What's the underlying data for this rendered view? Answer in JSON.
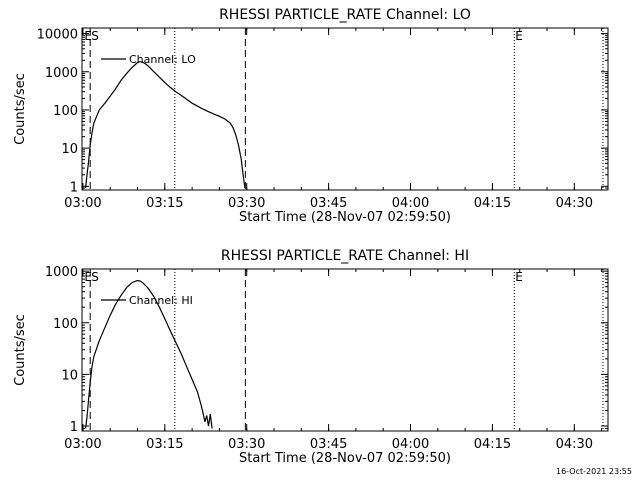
{
  "footer": {
    "timestamp": "16-Oct-2021 23:55"
  },
  "chart_data": [
    {
      "type": "line",
      "title": "RHESSI PARTICLE_RATE Channel: LO",
      "xlabel": "Start Time (28-Nov-07 02:59:50)",
      "ylabel": "Counts/sec",
      "scale_y": "log",
      "xlim": [
        "02:59:50",
        "04:36:10"
      ],
      "ylim": [
        0.8,
        14000
      ],
      "xticks": [
        "03:00",
        "03:15",
        "03:30",
        "03:45",
        "04:00",
        "04:15",
        "04:30"
      ],
      "yticks": [
        "1",
        "10",
        "100",
        "1000",
        "10000"
      ],
      "legend": {
        "label": "Channel: LO",
        "position": "top-left"
      },
      "markers": [
        {
          "text": "E",
          "time": "03:00:05"
        },
        {
          "text": "S",
          "time": "03:01:20"
        },
        {
          "text": "E",
          "time": "04:19:00"
        }
      ],
      "vlines": [
        {
          "time": "03:01:20",
          "style": "dashed"
        },
        {
          "time": "03:16:50",
          "style": "dotted"
        },
        {
          "time": "03:29:45",
          "style": "dashed"
        },
        {
          "time": "04:19:00",
          "style": "dotted"
        },
        {
          "time": "04:35:15",
          "style": "dotted"
        }
      ],
      "series": [
        {
          "name": "Channel: LO",
          "points": [
            [
              "03:00:30",
              0.9
            ],
            [
              "03:00:45",
              2
            ],
            [
              "03:01:00",
              4
            ],
            [
              "03:01:10",
              7
            ],
            [
              "03:01:20",
              12
            ],
            [
              "03:01:40",
              25
            ],
            [
              "03:02:00",
              45
            ],
            [
              "03:03:00",
              100
            ],
            [
              "03:04:00",
              150
            ],
            [
              "03:05:00",
              230
            ],
            [
              "03:06:00",
              360
            ],
            [
              "03:07:00",
              600
            ],
            [
              "03:08:00",
              900
            ],
            [
              "03:09:00",
              1300
            ],
            [
              "03:10:00",
              1750
            ],
            [
              "03:10:30",
              1850
            ],
            [
              "03:11:00",
              1750
            ],
            [
              "03:11:30",
              1600
            ],
            [
              "03:12:00",
              1400
            ],
            [
              "03:13:00",
              1000
            ],
            [
              "03:14:00",
              720
            ],
            [
              "03:15:00",
              520
            ],
            [
              "03:16:00",
              390
            ],
            [
              "03:17:00",
              300
            ],
            [
              "03:18:00",
              240
            ],
            [
              "03:19:00",
              190
            ],
            [
              "03:20:00",
              150
            ],
            [
              "03:21:00",
              125
            ],
            [
              "03:22:00",
              105
            ],
            [
              "03:23:00",
              90
            ],
            [
              "03:24:00",
              78
            ],
            [
              "03:25:00",
              68
            ],
            [
              "03:26:00",
              58
            ],
            [
              "03:27:00",
              45
            ],
            [
              "03:27:30",
              34
            ],
            [
              "03:28:00",
              22
            ],
            [
              "03:28:30",
              12
            ],
            [
              "03:29:00",
              5
            ],
            [
              "03:29:20",
              2
            ],
            [
              "03:29:40",
              0.9
            ]
          ]
        }
      ]
    },
    {
      "type": "line",
      "title": "RHESSI PARTICLE_RATE Channel: HI",
      "xlabel": "Start Time (28-Nov-07 02:59:50)",
      "ylabel": "Counts/sec",
      "scale_y": "log",
      "xlim": [
        "02:59:50",
        "04:36:10"
      ],
      "ylim": [
        0.8,
        1100
      ],
      "xticks": [
        "03:00",
        "03:15",
        "03:30",
        "03:45",
        "04:00",
        "04:15",
        "04:30"
      ],
      "yticks": [
        "1",
        "10",
        "100",
        "1000"
      ],
      "legend": {
        "label": "Channel: HI",
        "position": "top-left"
      },
      "markers": [
        {
          "text": "E",
          "time": "03:00:05"
        },
        {
          "text": "S",
          "time": "03:01:20"
        },
        {
          "text": "E",
          "time": "04:19:00"
        }
      ],
      "vlines": [
        {
          "time": "03:01:20",
          "style": "dashed"
        },
        {
          "time": "03:16:50",
          "style": "dotted"
        },
        {
          "time": "03:29:45",
          "style": "dashed"
        },
        {
          "time": "04:19:00",
          "style": "dotted"
        },
        {
          "time": "04:35:15",
          "style": "dotted"
        }
      ],
      "series": [
        {
          "name": "Channel: HI",
          "points": [
            [
              "03:00:30",
              0.9
            ],
            [
              "03:00:45",
              1.5
            ],
            [
              "03:01:00",
              3
            ],
            [
              "03:01:20",
              7
            ],
            [
              "03:01:40",
              14
            ],
            [
              "03:02:00",
              22
            ],
            [
              "03:03:00",
              45
            ],
            [
              "03:04:00",
              80
            ],
            [
              "03:05:00",
              140
            ],
            [
              "03:06:00",
              230
            ],
            [
              "03:07:00",
              340
            ],
            [
              "03:08:00",
              480
            ],
            [
              "03:09:00",
              600
            ],
            [
              "03:10:00",
              660
            ],
            [
              "03:10:30",
              640
            ],
            [
              "03:11:00",
              590
            ],
            [
              "03:12:00",
              460
            ],
            [
              "03:13:00",
              320
            ],
            [
              "03:14:00",
              200
            ],
            [
              "03:15:00",
              120
            ],
            [
              "03:16:00",
              70
            ],
            [
              "03:17:00",
              42
            ],
            [
              "03:18:00",
              25
            ],
            [
              "03:19:00",
              14
            ],
            [
              "03:20:00",
              8
            ],
            [
              "03:21:00",
              4.5
            ],
            [
              "03:21:40",
              2.5
            ],
            [
              "03:22:00",
              1.8
            ],
            [
              "03:22:20",
              1.2
            ],
            [
              "03:22:40",
              1.6
            ],
            [
              "03:23:00",
              1.0
            ],
            [
              "03:23:20",
              1.7
            ],
            [
              "03:23:40",
              0.9
            ]
          ]
        }
      ]
    }
  ]
}
